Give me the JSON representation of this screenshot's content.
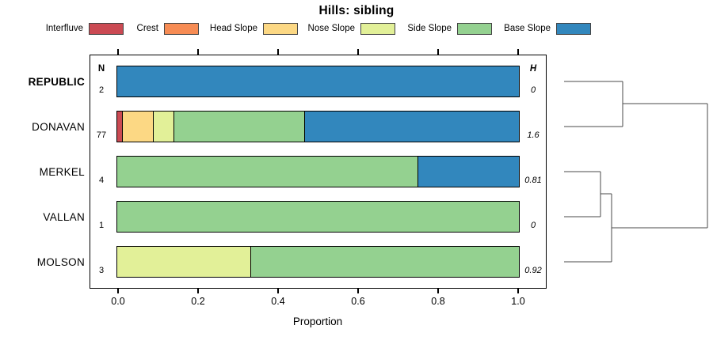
{
  "chart_data": {
    "type": "bar",
    "variant": "stacked-horizontal-with-dendrogram",
    "title": "Hills: sibling",
    "xlabel": "Proportion",
    "xlim": [
      0,
      1
    ],
    "xticks": [
      "0.0",
      "0.2",
      "0.4",
      "0.6",
      "0.8",
      "1.0"
    ],
    "grid": false,
    "legend_position": "top",
    "columns": {
      "n_header": "N",
      "h_header": "H"
    },
    "categories": [
      "Interfluve",
      "Crest",
      "Head Slope",
      "Nose Slope",
      "Side Slope",
      "Base Slope"
    ],
    "colors": {
      "Interfluve": "#cb4a53",
      "Crest": "#f78c54",
      "Head Slope": "#fcd884",
      "Nose Slope": "#e2f098",
      "Side Slope": "#94d190",
      "Base Slope": "#3287bd"
    },
    "rows": [
      {
        "label": "REPUBLIC",
        "emphasis": true,
        "n": "2",
        "h": "0",
        "segments": [
          {
            "category": "Base Slope",
            "value": 1.0
          }
        ]
      },
      {
        "label": "DONAVAN",
        "emphasis": false,
        "n": "77",
        "h": "1.6",
        "segments": [
          {
            "category": "Interfluve",
            "value": 0.013
          },
          {
            "category": "Head Slope",
            "value": 0.078
          },
          {
            "category": "Nose Slope",
            "value": 0.052
          },
          {
            "category": "Side Slope",
            "value": 0.325
          },
          {
            "category": "Base Slope",
            "value": 0.532
          }
        ]
      },
      {
        "label": "MERKEL",
        "emphasis": false,
        "n": "4",
        "h": "0.81",
        "segments": [
          {
            "category": "Side Slope",
            "value": 0.75
          },
          {
            "category": "Base Slope",
            "value": 0.25
          }
        ]
      },
      {
        "label": "VALLAN",
        "emphasis": false,
        "n": "1",
        "h": "0",
        "segments": [
          {
            "category": "Side Slope",
            "value": 1.0
          }
        ]
      },
      {
        "label": "MOLSON",
        "emphasis": false,
        "n": "3",
        "h": "0.92",
        "segments": [
          {
            "category": "Nose Slope",
            "value": 0.333
          },
          {
            "category": "Side Slope",
            "value": 0.667
          }
        ]
      }
    ],
    "dendrogram": {
      "structure": "((REPUBLIC,DONAVAN),((MERKEL,VALLAN),MOLSON))",
      "segments": [
        [
          12,
          34,
          86,
          34
        ],
        [
          12,
          91,
          86,
          91
        ],
        [
          86,
          34,
          86,
          91
        ],
        [
          86,
          62,
          193,
          62
        ],
        [
          12,
          148,
          58,
          148
        ],
        [
          12,
          205,
          58,
          205
        ],
        [
          58,
          148,
          58,
          205
        ],
        [
          58,
          176,
          72,
          176
        ],
        [
          12,
          262,
          72,
          262
        ],
        [
          72,
          176,
          72,
          262
        ],
        [
          72,
          219,
          193,
          219
        ],
        [
          193,
          62,
          193,
          219
        ]
      ]
    }
  }
}
